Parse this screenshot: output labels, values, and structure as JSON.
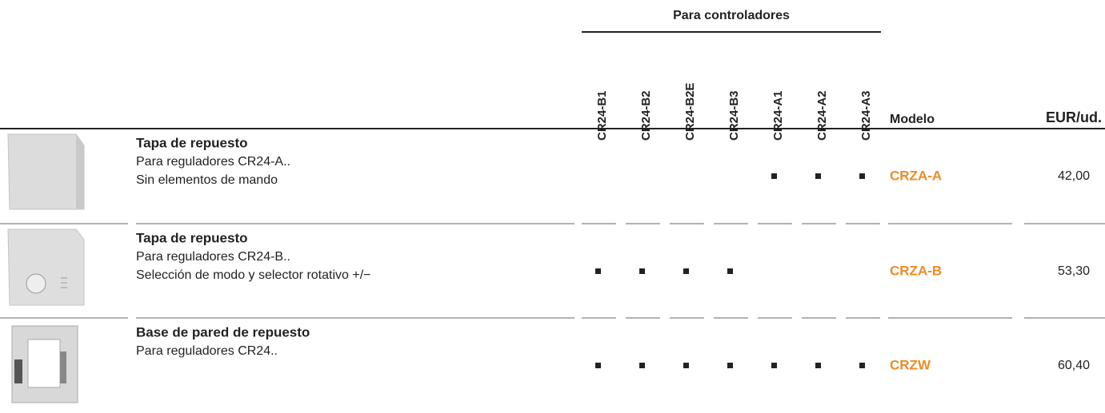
{
  "header": {
    "group": "Para controladores",
    "columns": [
      "CR24-B1",
      "CR24-B2",
      "CR24-B2E",
      "CR24-B3",
      "CR24-A1",
      "CR24-A2",
      "CR24-A3"
    ],
    "model": "Modelo",
    "price": "EUR/ud."
  },
  "rows": [
    {
      "title": "Tapa de repuesto",
      "lines": [
        "Para reguladores CR24-A..",
        "Sin elementos de mando"
      ],
      "compat": [
        false,
        false,
        false,
        false,
        true,
        true,
        true
      ],
      "model": "CRZA-A",
      "price": "42,00"
    },
    {
      "title": "Tapa de repuesto",
      "lines": [
        "Para reguladores CR24-B..",
        "Selección de modo y selector rotativo +/−"
      ],
      "compat": [
        true,
        true,
        true,
        true,
        false,
        false,
        false
      ],
      "model": "CRZA-B",
      "price": "53,30"
    },
    {
      "title": "Base de pared de repuesto",
      "lines": [
        "Para reguladores CR24.."
      ],
      "compat": [
        true,
        true,
        true,
        true,
        true,
        true,
        true
      ],
      "model": "CRZW",
      "price": "60,40"
    }
  ]
}
